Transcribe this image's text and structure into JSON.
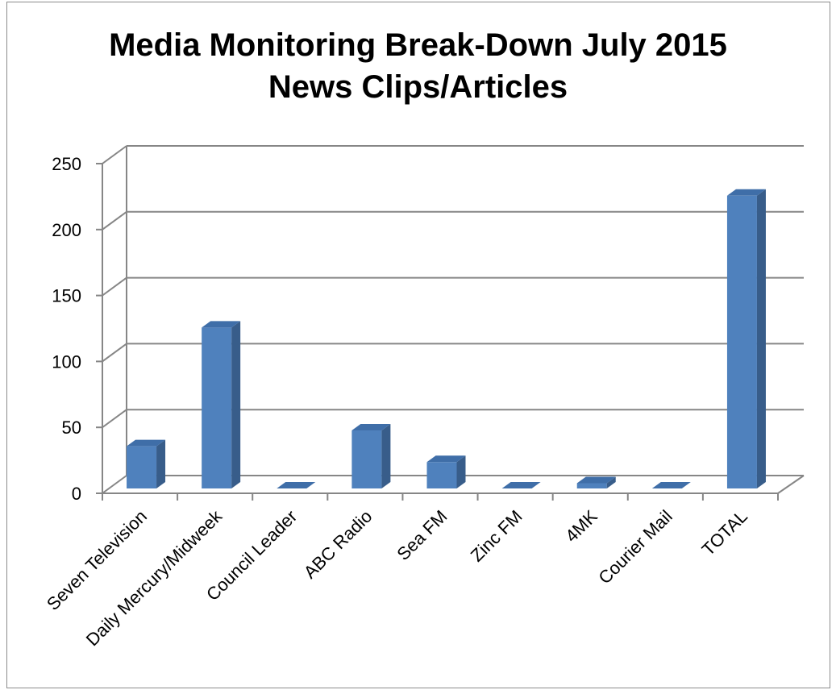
{
  "chart_data": {
    "type": "bar",
    "title": [
      "Media Monitoring Break-Down July 2015",
      "News Clips/Articles"
    ],
    "categories": [
      "Seven Television",
      "Daily Mercury/Midweek",
      "Council Leader",
      "ABC Radio",
      "Sea FM",
      "Zinc FM",
      "4MK",
      "Courier Mail",
      "TOTAL"
    ],
    "values": [
      32,
      122,
      0,
      44,
      20,
      0,
      4,
      0,
      222
    ],
    "ylim": [
      0,
      250
    ],
    "yticks": [
      0,
      50,
      100,
      150,
      200,
      250
    ],
    "grid": true,
    "three_d": true,
    "colors": {
      "bar_front": "#4f81bd",
      "bar_side": "#385d8a",
      "bar_top": "#3f6ea8",
      "grid": "#868686",
      "axis": "#868686"
    }
  }
}
